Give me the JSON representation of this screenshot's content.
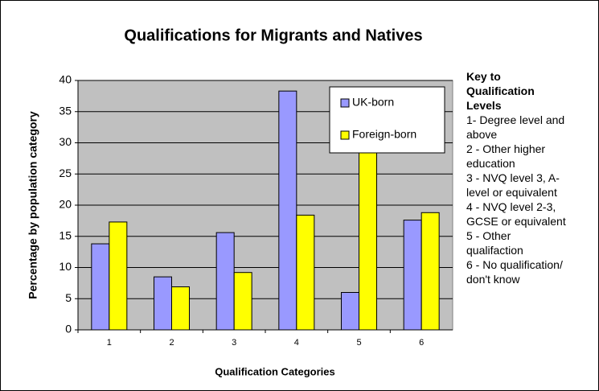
{
  "chart_data": {
    "type": "bar",
    "title": "Qualifications for Migrants and Natives",
    "x_label": "Qualification Categories",
    "y_label": "Percentage by population category",
    "categories": [
      "1",
      "2",
      "3",
      "4",
      "5",
      "6"
    ],
    "series": [
      {
        "name": "UK-born",
        "color": "#9999ff",
        "values": [
          13.8,
          8.5,
          15.6,
          38.3,
          6.0,
          17.6
        ]
      },
      {
        "name": "Foreign-born",
        "color": "#ffff00",
        "values": [
          17.3,
          6.9,
          9.2,
          18.4,
          32,
          18.8
        ]
      }
    ],
    "ylim": [
      0,
      40
    ],
    "yticks": [
      0,
      5,
      10,
      15,
      20,
      25,
      30,
      35,
      40
    ],
    "grid": true,
    "legend": "top-right",
    "key": {
      "title": "Key to Qualification Levels",
      "items": [
        "1- Degree level and above",
        "2 - Other higher education",
        "3 - NVQ level 3, A-level or equivalent",
        "4 - NVQ level 2-3, GCSE or equivalent",
        "5 - Other qualifaction",
        "6 - No qualification/ don't know"
      ]
    }
  }
}
